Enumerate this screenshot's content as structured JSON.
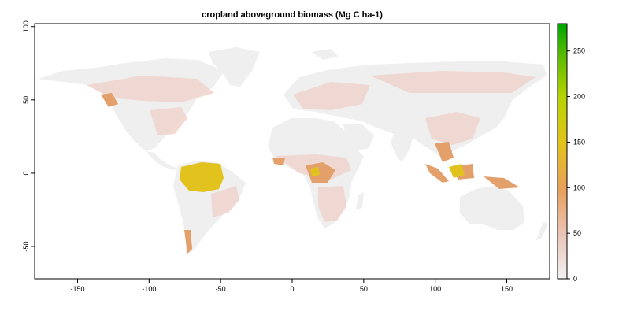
{
  "map": {
    "title": "cropland aboveground biomass (Mg C ha-1)",
    "x_axis": {
      "ticks": [
        -150,
        -100,
        -50,
        0,
        50,
        100,
        150
      ],
      "range": [
        -180,
        180
      ]
    },
    "y_axis": {
      "ticks": [
        100,
        50,
        0,
        -50
      ],
      "range": [
        -72,
        102
      ]
    }
  },
  "legend": {
    "ticks": [
      0,
      50,
      100,
      150,
      200,
      250
    ],
    "range": [
      0,
      280
    ],
    "colors": [
      "#f2f2f2",
      "#eac5b8",
      "#e8a05c",
      "#e3c21a",
      "#b8d400",
      "#5dbb00",
      "#00a600"
    ]
  },
  "colors": {
    "land": "#efefef",
    "low": "#f0d4cc",
    "mid": "#e3a06a",
    "high": "#e2c21c"
  }
}
